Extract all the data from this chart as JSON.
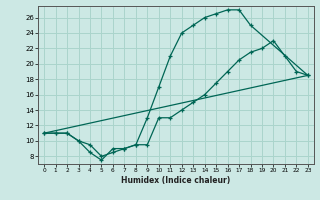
{
  "xlabel": "Humidex (Indice chaleur)",
  "bg_color": "#cce8e4",
  "grid_color": "#aad4cc",
  "line_color": "#006655",
  "xlim": [
    -0.5,
    23.5
  ],
  "ylim": [
    7,
    27.5
  ],
  "xticks": [
    0,
    1,
    2,
    3,
    4,
    5,
    6,
    7,
    8,
    9,
    10,
    11,
    12,
    13,
    14,
    15,
    16,
    17,
    18,
    19,
    20,
    21,
    22,
    23
  ],
  "yticks": [
    8,
    10,
    12,
    14,
    16,
    18,
    20,
    22,
    24,
    26
  ],
  "curve1_x": [
    0,
    1,
    2,
    3,
    4,
    5,
    6,
    7,
    8,
    9,
    10,
    11,
    12,
    13,
    14,
    15,
    16,
    17,
    18,
    23
  ],
  "curve1_y": [
    11,
    11,
    11,
    10,
    8.5,
    7.5,
    9,
    9,
    9.5,
    13,
    17,
    21,
    24,
    25,
    26,
    26.5,
    27,
    27,
    25,
    18.5
  ],
  "curve2_x": [
    0,
    1,
    2,
    3,
    4,
    5,
    6,
    7,
    8,
    9,
    10,
    11,
    12,
    13,
    14,
    15,
    16,
    17,
    18,
    19,
    20,
    21,
    22,
    23
  ],
  "curve2_y": [
    11,
    11,
    11,
    10,
    9.5,
    8,
    8.5,
    9,
    9.5,
    9.5,
    13,
    13,
    14,
    15,
    16,
    17.5,
    19,
    20.5,
    21.5,
    22,
    23,
    21,
    19,
    18.5
  ],
  "curve3_x": [
    0,
    23
  ],
  "curve3_y": [
    11,
    18.5
  ]
}
